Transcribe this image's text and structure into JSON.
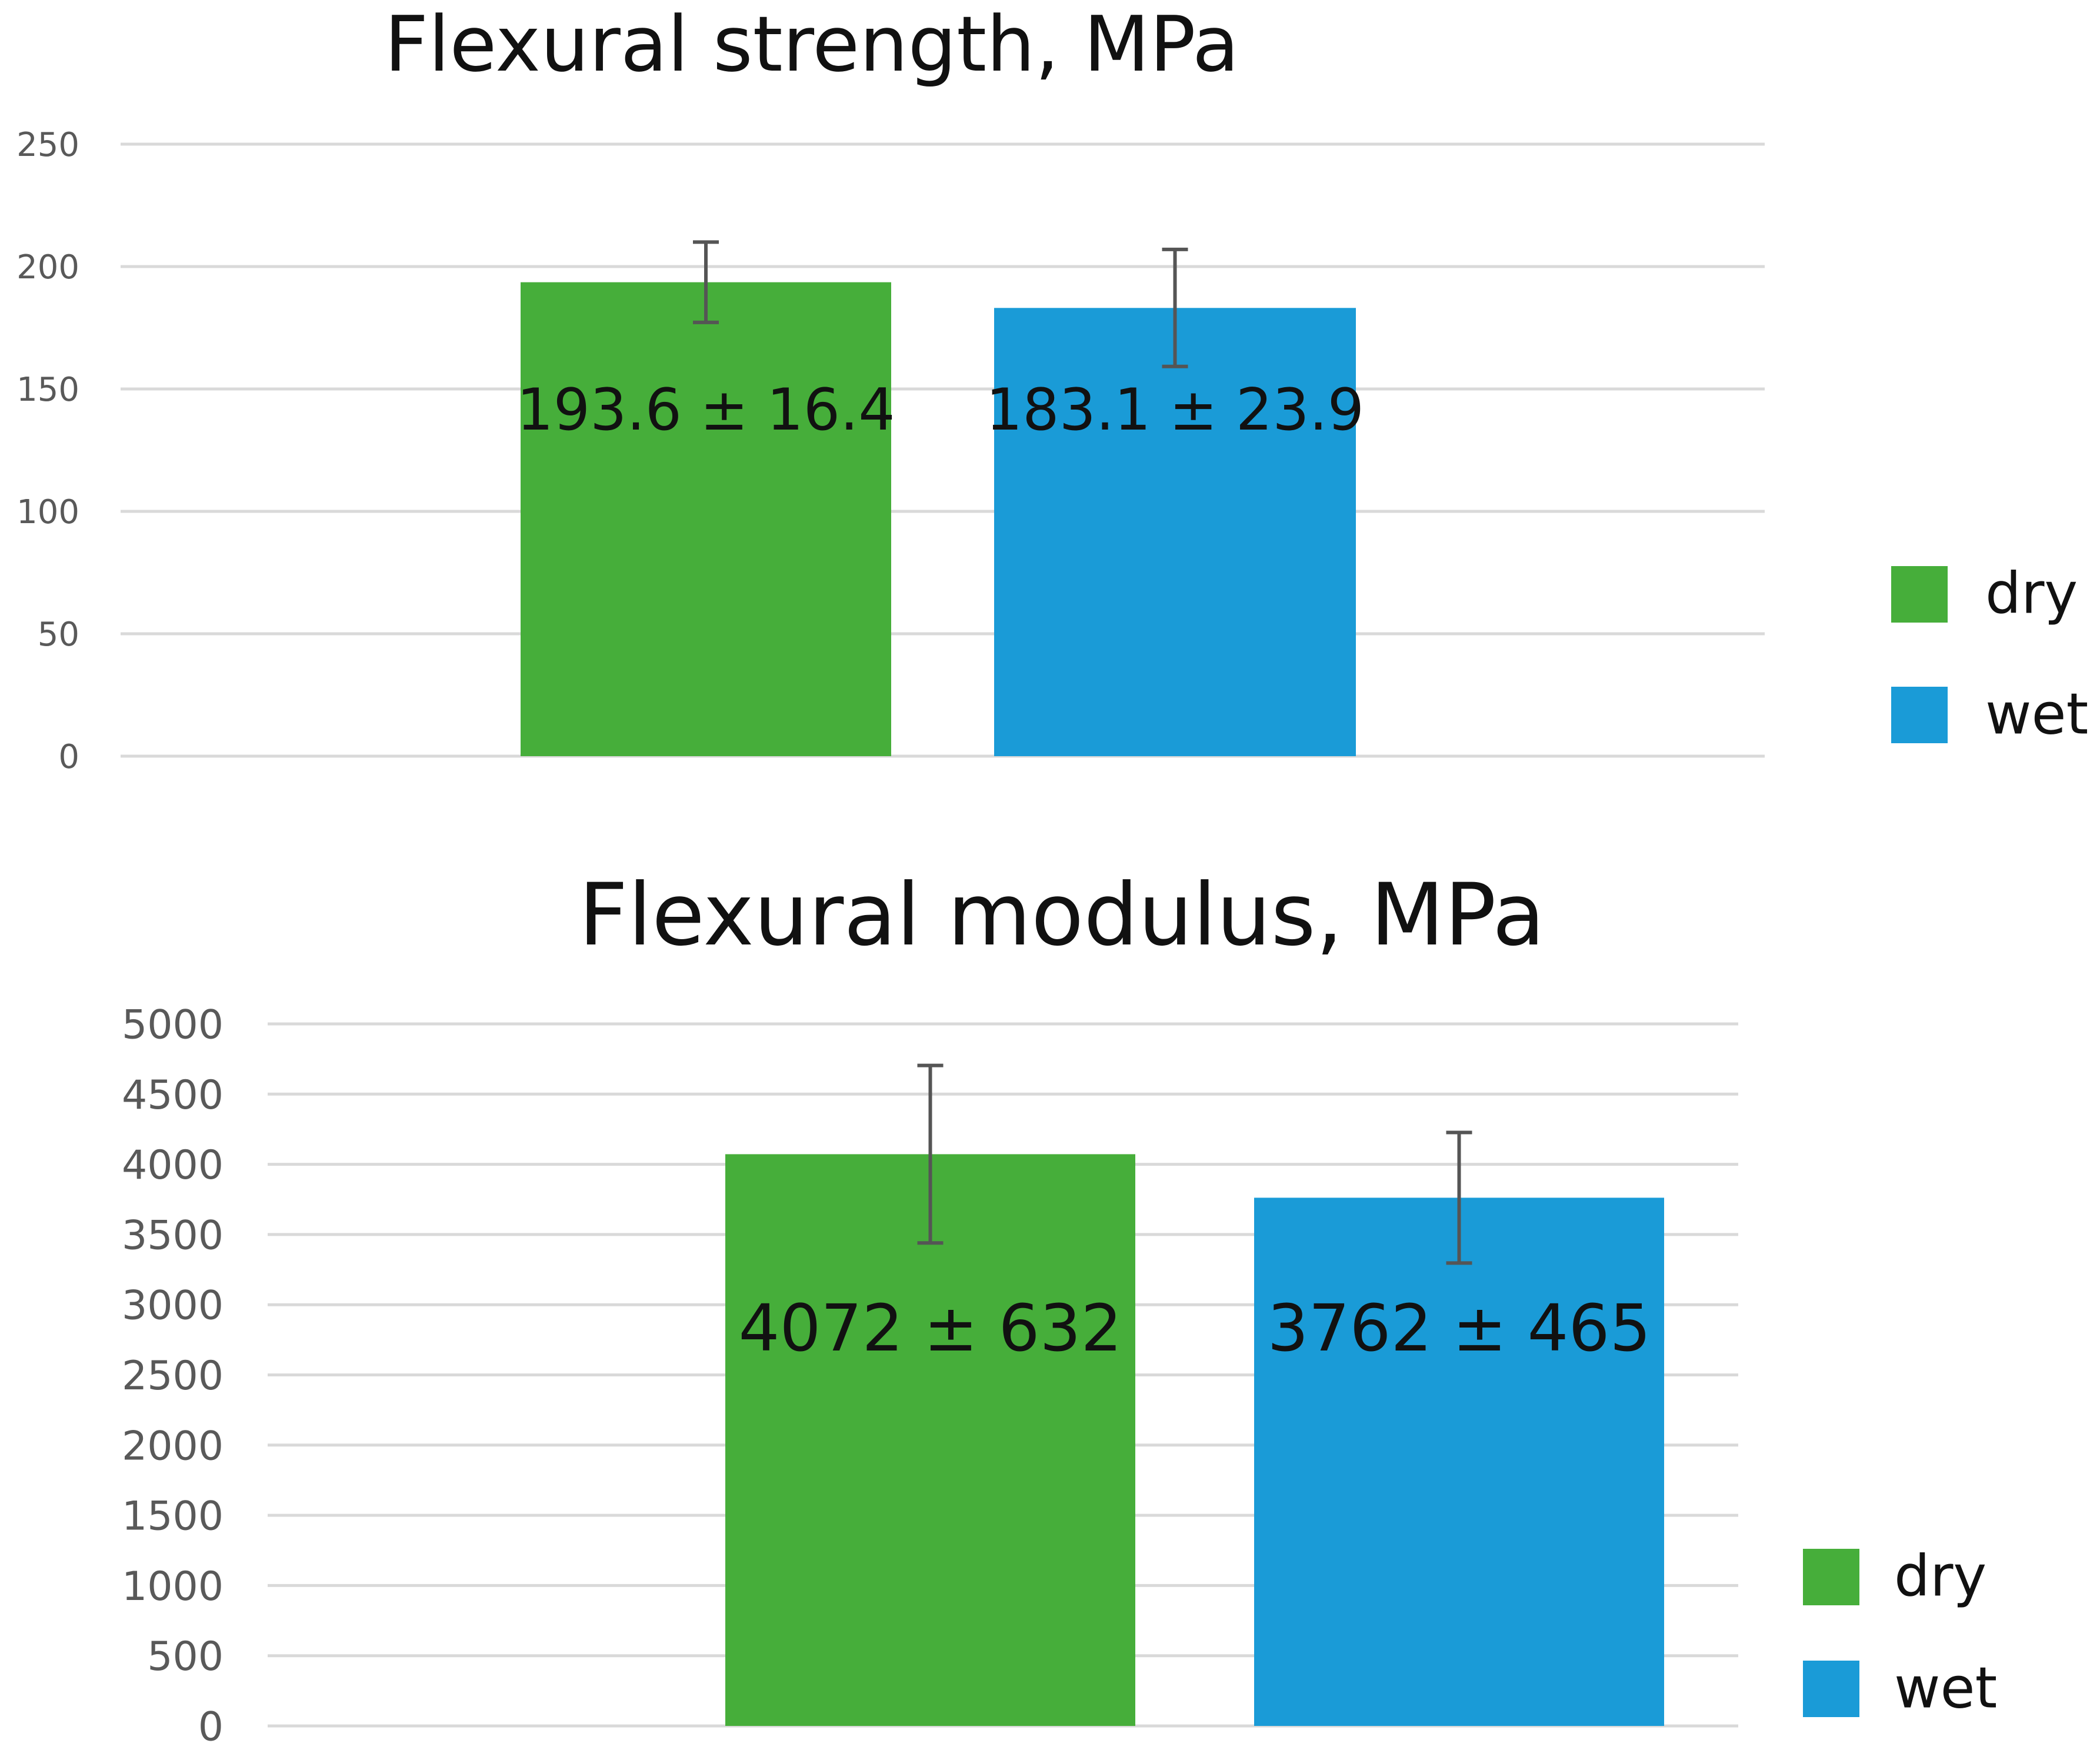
{
  "colors": {
    "dry": "#46ae3a",
    "wet": "#1a9bd7",
    "grid": "#d9d9d9",
    "error_bar": "#555555"
  },
  "chart_data": [
    {
      "type": "bar",
      "title": "Flexural strength, MPa",
      "xlabel": "",
      "ylabel": "",
      "ylim": [
        0,
        250
      ],
      "yticks": [
        "0",
        "50",
        "100",
        "150",
        "200",
        "250"
      ],
      "grid": true,
      "legend_position": "right",
      "series": [
        {
          "name": "dry",
          "value": 193.6,
          "error": 16.4,
          "label": "193.6 ± 16.4"
        },
        {
          "name": "wet",
          "value": 183.1,
          "error": 23.9,
          "label": "183.1 ± 23.9"
        }
      ]
    },
    {
      "type": "bar",
      "title": "Flexural modulus, MPa",
      "xlabel": "",
      "ylabel": "",
      "ylim": [
        0,
        5000
      ],
      "yticks": [
        "0",
        "500",
        "1000",
        "1500",
        "2000",
        "2500",
        "3000",
        "3500",
        "4000",
        "4500",
        "5000"
      ],
      "grid": true,
      "legend_position": "bottom-right",
      "series": [
        {
          "name": "dry",
          "value": 4072,
          "error": 632,
          "label": "4072 ± 632"
        },
        {
          "name": "wet",
          "value": 3762,
          "error": 465,
          "label": "3762 ± 465"
        }
      ]
    }
  ]
}
